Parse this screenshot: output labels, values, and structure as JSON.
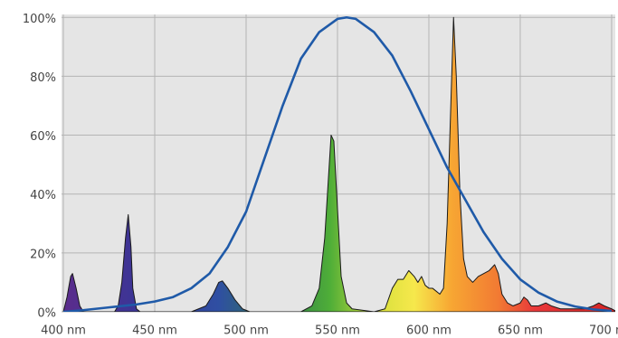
{
  "chart_data": {
    "type": "area",
    "xlim": [
      399,
      702
    ],
    "ylim": [
      0,
      101
    ],
    "xticks": [
      {
        "value": 400,
        "label": "400 nm"
      },
      {
        "value": 450,
        "label": "450 nm"
      },
      {
        "value": 500,
        "label": "500 nm"
      },
      {
        "value": 550,
        "label": "550 nm"
      },
      {
        "value": 600,
        "label": "600 nm"
      },
      {
        "value": 650,
        "label": "650 nm"
      },
      {
        "value": 700,
        "label": "700 nm"
      }
    ],
    "yticks": [
      {
        "value": 0,
        "label": "0%"
      },
      {
        "value": 20,
        "label": "20%"
      },
      {
        "value": 40,
        "label": "40%"
      },
      {
        "value": 60,
        "label": "60%"
      },
      {
        "value": 80,
        "label": "80%"
      },
      {
        "value": 100,
        "label": "100%"
      }
    ],
    "grid": true,
    "series": [
      {
        "kind": "area",
        "color": "#1a1a1a",
        "fill_colors": [
          {
            "x": 400,
            "color": "#5b2c8c"
          },
          {
            "x": 440,
            "color": "#3b3596"
          },
          {
            "x": 485,
            "color": "#2f4fa2"
          },
          {
            "x": 520,
            "color": "#2f7f4a"
          },
          {
            "x": 546,
            "color": "#4fae38"
          },
          {
            "x": 572,
            "color": "#d8e03c"
          },
          {
            "x": 592,
            "color": "#f6e84c"
          },
          {
            "x": 612,
            "color": "#f7a733"
          },
          {
            "x": 638,
            "color": "#f27a33"
          },
          {
            "x": 658,
            "color": "#e8383a"
          },
          {
            "x": 702,
            "color": "#d42424"
          }
        ],
        "x": [
          400,
          402,
          404,
          405,
          407,
          409,
          411,
          420,
          428,
          430,
          432,
          434,
          435.5,
          437,
          438,
          440,
          442,
          470,
          478,
          482,
          485,
          487,
          490,
          494,
          498,
          502,
          530,
          536,
          540,
          543,
          545,
          546.5,
          548,
          550,
          552,
          555,
          558,
          570,
          576,
          580,
          583,
          586,
          589,
          592,
          594,
          596,
          598,
          600,
          602,
          604,
          606,
          608,
          610,
          612,
          613.5,
          615,
          617,
          619,
          621,
          624,
          627,
          630,
          633,
          636,
          638,
          640,
          643,
          646,
          650,
          652,
          654,
          656,
          660,
          664,
          667,
          672,
          685,
          690,
          693,
          696,
          700,
          703
        ],
        "values": [
          0,
          5,
          12,
          13,
          8,
          2,
          0,
          0,
          0,
          2,
          10,
          25,
          33,
          22,
          8,
          1,
          0,
          0,
          2,
          6,
          10,
          10.5,
          8,
          4,
          1,
          0,
          0,
          2,
          8,
          25,
          45,
          60,
          58,
          35,
          12,
          3,
          1,
          0,
          1,
          8,
          11,
          11,
          14,
          12,
          10,
          12,
          9,
          8,
          8,
          7,
          6,
          8,
          30,
          70,
          100,
          80,
          40,
          18,
          12,
          10,
          12,
          13,
          14,
          16,
          13,
          6,
          3,
          2,
          3,
          5,
          4,
          2,
          2,
          3,
          2,
          1,
          1,
          2,
          3,
          2,
          1,
          0
        ]
      },
      {
        "kind": "line",
        "color": "#1f5aa8",
        "x": [
          400,
          410,
          425,
          440,
          450,
          460,
          470,
          480,
          490,
          500,
          510,
          520,
          530,
          540,
          550,
          555,
          560,
          570,
          580,
          590,
          600,
          610,
          620,
          630,
          640,
          650,
          660,
          670,
          680,
          690,
          700
        ],
        "values": [
          0,
          0.5,
          1.5,
          2.5,
          3.5,
          5,
          8,
          13,
          22,
          34,
          52,
          70,
          86,
          95,
          99.5,
          100,
          99.5,
          95,
          87,
          75,
          62,
          49,
          38,
          27,
          18,
          11,
          6.5,
          3.5,
          1.8,
          0.8,
          0.3
        ]
      }
    ]
  }
}
